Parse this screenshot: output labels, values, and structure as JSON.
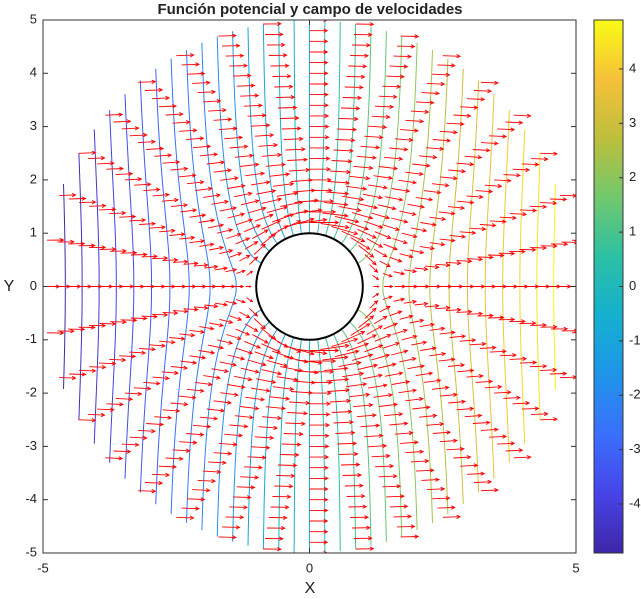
{
  "chart_data": {
    "type": "potential-flow",
    "title": "Función potencial y campo de velocidades",
    "x_label": "X",
    "y_label": "Y",
    "xlim": [
      -5,
      5
    ],
    "ylim": [
      -5,
      5
    ],
    "xticks": [
      -5,
      0,
      5
    ],
    "yticks": [
      -5,
      -4,
      -3,
      -2,
      -1,
      0,
      1,
      2,
      3,
      4,
      5
    ],
    "cylinder_radius": 1,
    "levels": [
      -4.8,
      -4.5,
      -4.2,
      -3.9,
      -3.6,
      -3.3,
      -3.0,
      -2.7,
      -2.4,
      -2.1,
      -1.8,
      -1.5,
      -1.2,
      -0.9,
      -0.6,
      -0.3,
      0,
      0.3,
      0.6,
      0.9,
      1.2,
      1.5,
      1.8,
      2.1,
      2.4,
      2.7,
      3.0,
      3.3,
      3.6,
      3.9,
      4.2,
      4.5,
      4.8
    ],
    "quiver": {
      "color": "#ff0000",
      "r": [
        1.2,
        1.4,
        1.6,
        1.8,
        2.0,
        2.2,
        2.4,
        2.6,
        2.8,
        3.0,
        3.2,
        3.4,
        3.6,
        3.8,
        4.0,
        4.2,
        4.4,
        4.6,
        4.8,
        5.0
      ],
      "theta_deg": [
        0,
        10,
        20,
        30,
        40,
        50,
        60,
        70,
        80,
        90,
        100,
        110,
        120,
        130,
        140,
        150,
        160,
        170,
        180,
        190,
        200,
        210,
        220,
        230,
        240,
        250,
        260,
        270,
        280,
        290,
        300,
        310,
        320,
        330,
        340,
        350
      ]
    },
    "colorbar": {
      "clim": [
        -4.9,
        4.9
      ],
      "ticks": [
        -4,
        -3,
        -2,
        -1,
        0,
        1,
        2,
        3,
        4
      ],
      "colormap": [
        "#3e26a8",
        "#4744e8",
        "#3a6ffc",
        "#1f94e9",
        "#14b0d0",
        "#2cc0a4",
        "#71c86e",
        "#bdbf3c",
        "#f6c03a",
        "#f9fb15"
      ]
    }
  }
}
